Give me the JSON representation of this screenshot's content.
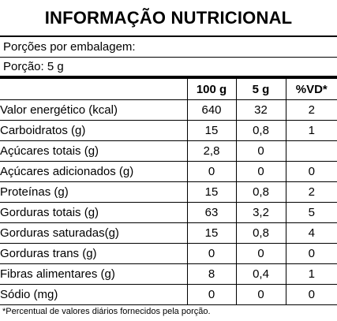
{
  "title": "INFORMAÇÃO NUTRICIONAL",
  "servings_per_package": "Porções por embalagem:",
  "serving_size": "Porção: 5 g",
  "columns": [
    "",
    "100 g",
    "5 g",
    "%VD*"
  ],
  "rows": [
    {
      "name": "Valor energético (kcal)",
      "per100": "640",
      "per_serving": "32",
      "vd": "2"
    },
    {
      "name": "Carboidratos (g)",
      "per100": "15",
      "per_serving": "0,8",
      "vd": "1"
    },
    {
      "name": "Açúcares totais (g)",
      "per100": "2,8",
      "per_serving": "0",
      "vd": ""
    },
    {
      "name": "Açúcares adicionados (g)",
      "per100": "0",
      "per_serving": "0",
      "vd": "0"
    },
    {
      "name": "Proteínas (g)",
      "per100": "15",
      "per_serving": "0,8",
      "vd": "2"
    },
    {
      "name": "Gorduras totais (g)",
      "per100": "63",
      "per_serving": "3,2",
      "vd": "5"
    },
    {
      "name": "Gorduras saturadas(g)",
      "per100": "15",
      "per_serving": "0,8",
      "vd": "4"
    },
    {
      "name": "Gorduras trans (g)",
      "per100": "0",
      "per_serving": "0",
      "vd": "0"
    },
    {
      "name": "Fibras alimentares (g)",
      "per100": "8",
      "per_serving": "0,4",
      "vd": "1"
    },
    {
      "name": "Sódio (mg)",
      "per100": "0",
      "per_serving": "0",
      "vd": "0"
    }
  ],
  "footnote": "*Percentual de valores diários fornecidos pela porção."
}
